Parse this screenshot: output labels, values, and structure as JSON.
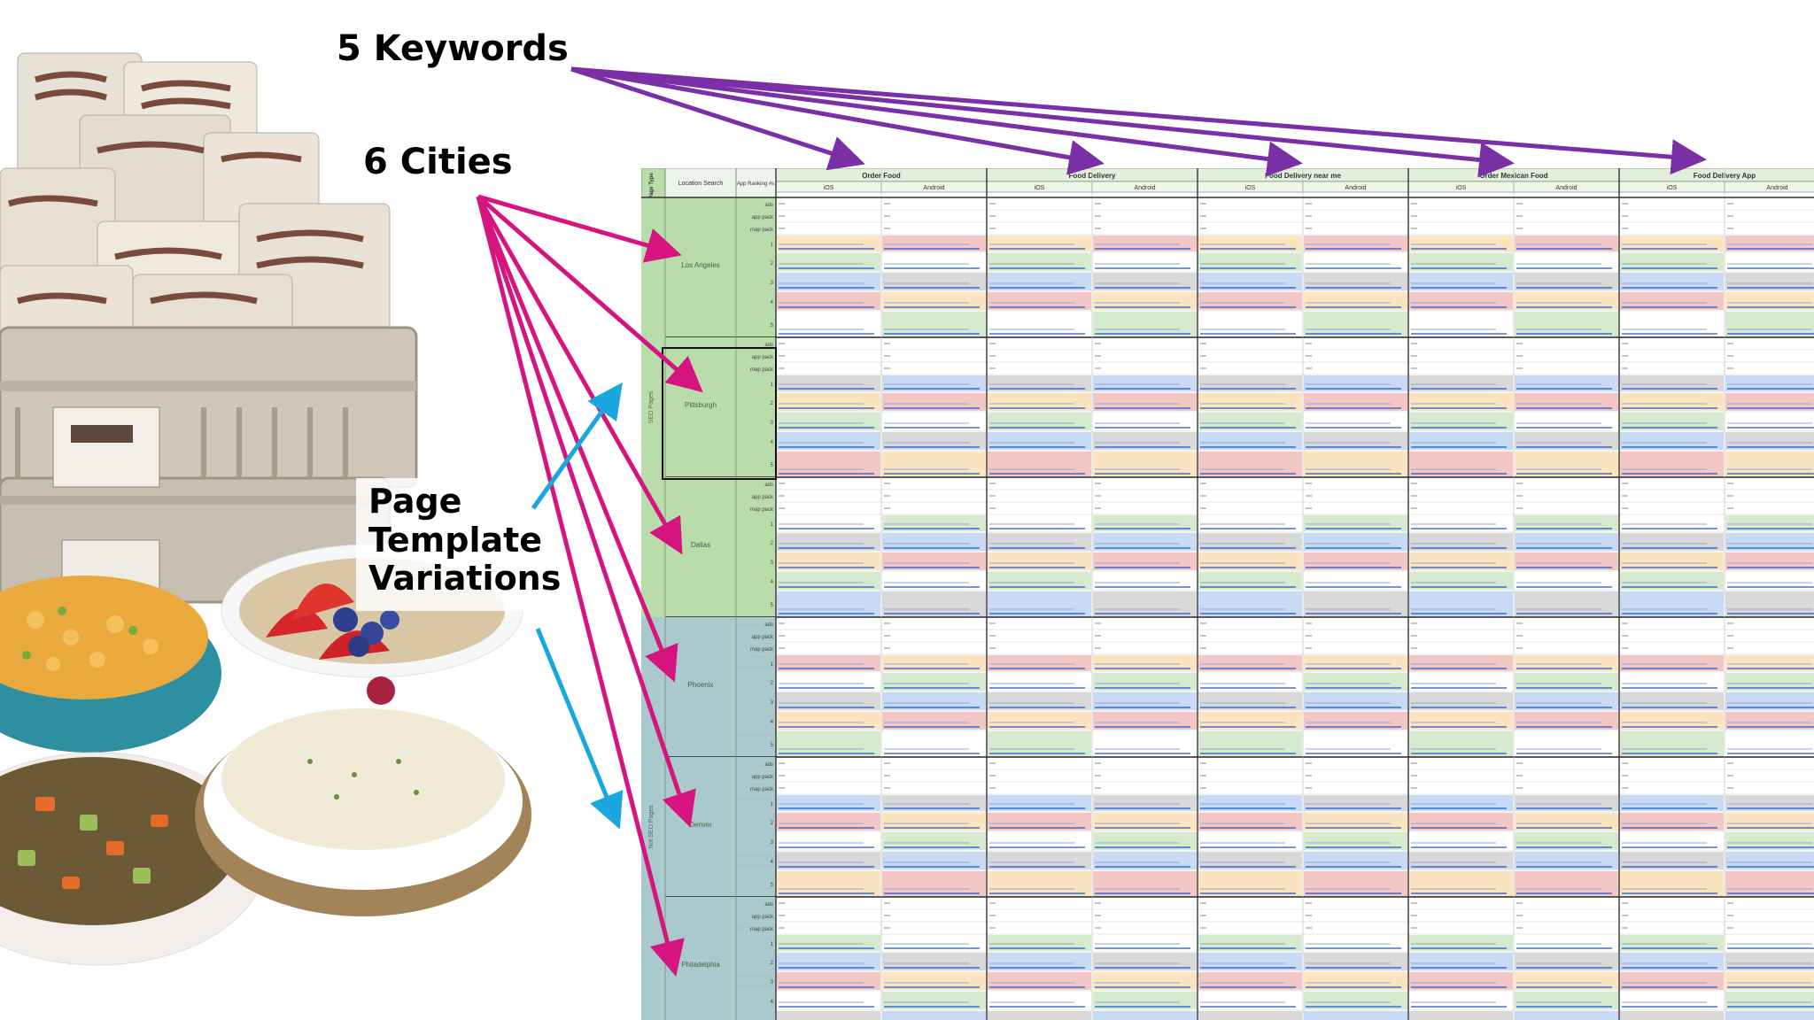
{
  "callouts": {
    "keywords": "5 Keywords",
    "cities": "6 Cities",
    "template_line1": "Page",
    "template_line2": "Template",
    "template_line3": "Variations"
  },
  "sheet": {
    "corner_header": "Page Type",
    "location_header": "Location Search",
    "ranking_header": "App Ranking #s",
    "keywords": [
      "Order Food",
      "Food Delivery",
      "Food Delivery near me",
      "Order Mexican Food",
      "Food Delivery App"
    ],
    "platforms": [
      "iOS",
      "Android"
    ],
    "row_labels": [
      "ads",
      "app pack",
      "map pack",
      "1",
      "2",
      "3",
      "4",
      "5"
    ],
    "page_types": [
      "SEO Pages",
      "Not SEO Pages"
    ],
    "cities": [
      "Los Angeles",
      "Pittsburgh",
      "Dallas",
      "Phoenix",
      "Denver",
      "Philadelphia"
    ]
  },
  "colors": {
    "keyword_arrow": "#7b2fa6",
    "city_arrow": "#d6147f",
    "template_arrow": "#1aa7e0",
    "seo_band": "#b9dcab",
    "not_seo_band": "#a9c9cc",
    "cell_pink": "#f4c7c7",
    "cell_blue": "#c9daf5",
    "cell_green": "#d6ead0",
    "cell_yellow": "#fbe5c0",
    "cell_gray": "#d9d9d9",
    "link": "#1a56c8"
  }
}
